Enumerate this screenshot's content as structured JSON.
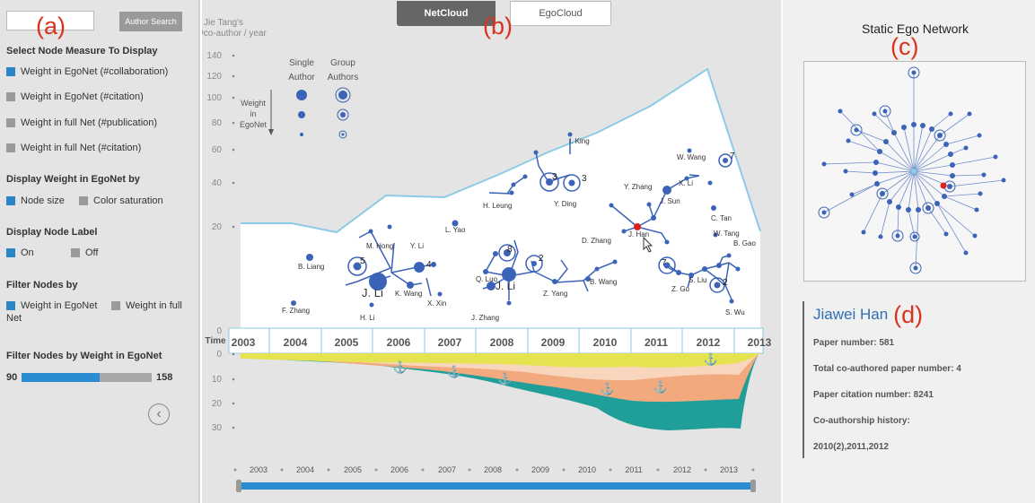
{
  "panels": {
    "a": "(a)",
    "b": "(b)",
    "c": "(c)",
    "d": "(d)"
  },
  "sidebar": {
    "search_placeholder": "",
    "search_button": "Author Search",
    "measure_title": "Select Node Measure To Display",
    "measures": [
      {
        "label": "Weight in EgoNet (#collaboration)",
        "selected": true
      },
      {
        "label": "Weight in EgoNet (#citation)",
        "selected": false
      },
      {
        "label": "Weight in full Net (#publication)",
        "selected": false
      },
      {
        "label": "Weight in full Net (#citation)",
        "selected": false
      }
    ],
    "display_weight_title": "Display Weight in EgoNet by",
    "display_weight_options": [
      {
        "label": "Node size",
        "selected": true
      },
      {
        "label": "Color saturation",
        "selected": false
      }
    ],
    "node_label_title": "Display Node Label",
    "node_label_options": [
      {
        "label": "On",
        "selected": true
      },
      {
        "label": "Off",
        "selected": false
      }
    ],
    "filter_title": "Filter Nodes by",
    "filter_options": [
      {
        "label": "Weight in EgoNet",
        "selected": true
      },
      {
        "label": "Weight in full",
        "selected": false
      }
    ],
    "filter_options_wrap": "Net",
    "filter_weight_title": "Filter Nodes by Weight in EgoNet",
    "slider_min": "90",
    "slider_max": "158",
    "slider_value_fraction": 0.6
  },
  "tabs": {
    "netcloud": "NetCloud",
    "egocloud": "EgoCloud",
    "active": "netcloud"
  },
  "main": {
    "upper_axis_title_1": "Jie Tang's",
    "upper_axis_title_2": "#co-author / year",
    "upper_ticks": [
      "140",
      "120",
      "100",
      "80",
      "60",
      "40",
      "20",
      "0"
    ],
    "time_label": "Time",
    "lower_ticks": [
      "0",
      "10",
      "20",
      "30"
    ],
    "years": [
      "2003",
      "2004",
      "2005",
      "2006",
      "2007",
      "2008",
      "2009",
      "2010",
      "2011",
      "2012",
      "2013"
    ],
    "legend": {
      "single": [
        "Single",
        "Author"
      ],
      "group": [
        "Group",
        "Authors"
      ],
      "weight": [
        "Weight",
        "in",
        "EgoNet"
      ]
    },
    "node_labels": {
      "bliang": "B. Liang",
      "fzhang": "F. Zhang",
      "mhong": "M. Hong",
      "yli": "Y. Li",
      "hli": "H. Li",
      "jli1": "J. Li",
      "kwang": "K. Wang",
      "xxin": "X. Xin",
      "lyao": "L. Yao",
      "qluo": "Q. Luo",
      "jli2": "J. Li",
      "jzhang": "J. Zhang",
      "zyang": "Z. Yang",
      "bwang": "B. Wang",
      "hleung": "H. Leung",
      "yding": "Y. Ding",
      "iking": "I. King",
      "dzhang": "D. Zhang",
      "jhan": "J. Han",
      "yzhang": "Y. Zhang",
      "jsun": "J. Sun",
      "xli": "X. Li",
      "wwang": "W. Wang",
      "ctan": "C. Tan",
      "wtang": "W. Tang",
      "bgao": "B. Gao",
      "zgu": "Z. Gu",
      "sliu": "S. Liu",
      "swu": "S. Wu"
    },
    "group_counts": {
      "g5": "5",
      "g4": "4",
      "g8": "8",
      "g2a": "2",
      "g3a": "3",
      "g3b": "3",
      "g7a": "7",
      "g7b": "7",
      "g2b": "2"
    }
  },
  "ego": {
    "title": "Static Ego Network"
  },
  "info": {
    "name": "Jiawei Han",
    "paper_number": "Paper number: 581",
    "coauthored": "Total co-authored paper number: 4",
    "citations": "Paper citation number: 8241",
    "history_label": "Co-authorship history:",
    "history_value": "2010(2),2011,2012"
  },
  "colors": {
    "accent": "#2a86c4",
    "node": "#3b63b7",
    "highlight": "#e0201b",
    "stream_yellow": "#e6e351",
    "stream_orange": "#f1a97d",
    "stream_teal": "#1f9e9a"
  }
}
